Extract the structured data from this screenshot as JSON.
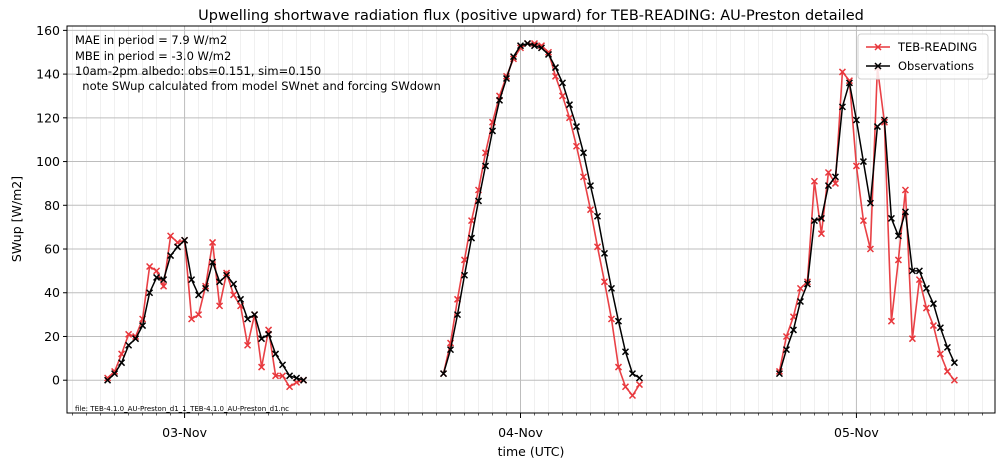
{
  "chart_data": {
    "type": "line",
    "title": "Upwelling shortwave radiation flux (positive upward) for TEB-READING: AU-Preston detailed",
    "xlabel": "time (UTC)",
    "ylabel": "SWup [W/m2]",
    "ylim": [
      -15,
      162
    ],
    "yticks": [
      0,
      20,
      40,
      60,
      80,
      100,
      120,
      140,
      160
    ],
    "xticks": [
      {
        "t": 24,
        "label": "03-Nov"
      },
      {
        "t": 48,
        "label": "04-Nov"
      },
      {
        "t": 72,
        "label": "05-Nov"
      }
    ],
    "xlim": [
      15.6,
      81.9
    ],
    "grid": true,
    "legend_position": "top-right",
    "annotations": [
      "MAE in period = 7.9 W/m2",
      "MBE in period = -3.0 W/m2",
      "10am-2pm albedo: obs=0.151, sim=0.150",
      "  note SWup calculated from model SWnet and forcing SWdown"
    ],
    "footnote": "file: TEB-4.1.0_AU-Preston_d1_1_TEB-4.1.0_AU-Preston_d1.nc",
    "series": [
      {
        "name": "TEB-READING",
        "color": "#e8373c",
        "marker": "x",
        "points": [
          [
            18.5,
            1
          ],
          [
            19,
            4
          ],
          [
            19.5,
            12
          ],
          [
            20,
            21
          ],
          [
            20.5,
            20
          ],
          [
            21,
            28
          ],
          [
            21.5,
            52
          ],
          [
            22,
            50
          ],
          [
            22.5,
            43
          ],
          [
            23,
            66
          ],
          [
            23.5,
            63
          ],
          [
            24,
            64
          ],
          [
            24.5,
            28
          ],
          [
            25,
            30
          ],
          [
            25.5,
            43
          ],
          [
            26,
            63
          ],
          [
            26.5,
            34
          ],
          [
            27,
            49
          ],
          [
            27.5,
            39
          ],
          [
            28,
            34
          ],
          [
            28.5,
            16
          ],
          [
            29,
            30
          ],
          [
            29.5,
            6
          ],
          [
            30,
            23
          ],
          [
            30.5,
            2
          ],
          [
            31,
            2
          ],
          [
            31.5,
            -3
          ],
          [
            32,
            -1
          ],
          [
            32.5,
            0
          ],
          [
            42.5,
            3
          ],
          [
            43,
            17
          ],
          [
            43.5,
            37
          ],
          [
            44,
            55
          ],
          [
            44.5,
            73
          ],
          [
            45,
            87
          ],
          [
            45.5,
            104
          ],
          [
            46,
            118
          ],
          [
            46.5,
            130
          ],
          [
            47,
            139
          ],
          [
            47.5,
            147
          ],
          [
            48,
            152
          ],
          [
            48.5,
            154
          ],
          [
            49,
            154
          ],
          [
            49.5,
            153
          ],
          [
            50,
            150
          ],
          [
            50.5,
            139
          ],
          [
            51,
            130
          ],
          [
            51.5,
            120
          ],
          [
            52,
            107
          ],
          [
            52.5,
            93
          ],
          [
            53,
            78
          ],
          [
            53.5,
            61
          ],
          [
            54,
            45
          ],
          [
            54.5,
            28
          ],
          [
            55,
            6
          ],
          [
            55.5,
            -3
          ],
          [
            56,
            -7
          ],
          [
            56.5,
            -2
          ],
          [
            66.5,
            4
          ],
          [
            67,
            20
          ],
          [
            67.5,
            29
          ],
          [
            68,
            42
          ],
          [
            68.5,
            45
          ],
          [
            69,
            91
          ],
          [
            69.5,
            67
          ],
          [
            70,
            95
          ],
          [
            70.5,
            90
          ],
          [
            71,
            141
          ],
          [
            71.5,
            137
          ],
          [
            72,
            98
          ],
          [
            72.5,
            73
          ],
          [
            73,
            60
          ],
          [
            73.5,
            143
          ],
          [
            74,
            118
          ],
          [
            74.5,
            27
          ],
          [
            75,
            55
          ],
          [
            75.5,
            87
          ],
          [
            76,
            19
          ],
          [
            76.5,
            46
          ],
          [
            77,
            33
          ],
          [
            77.5,
            25
          ],
          [
            78,
            12
          ],
          [
            78.5,
            4
          ],
          [
            79,
            0
          ]
        ]
      },
      {
        "name": "Observations",
        "color": "#000000",
        "marker": "x",
        "points": [
          [
            18.5,
            0
          ],
          [
            19,
            3
          ],
          [
            19.5,
            8
          ],
          [
            20,
            16
          ],
          [
            20.5,
            19
          ],
          [
            21,
            25
          ],
          [
            21.5,
            40
          ],
          [
            22,
            47
          ],
          [
            22.5,
            46
          ],
          [
            23,
            57
          ],
          [
            23.5,
            61
          ],
          [
            24,
            64
          ],
          [
            24.5,
            46
          ],
          [
            25,
            39
          ],
          [
            25.5,
            42
          ],
          [
            26,
            54
          ],
          [
            26.5,
            45
          ],
          [
            27,
            48
          ],
          [
            27.5,
            44
          ],
          [
            28,
            37
          ],
          [
            28.5,
            28
          ],
          [
            29,
            30
          ],
          [
            29.5,
            19
          ],
          [
            30,
            21
          ],
          [
            30.5,
            12
          ],
          [
            31,
            7
          ],
          [
            31.5,
            2
          ],
          [
            32,
            1
          ],
          [
            32.5,
            0
          ],
          [
            42.5,
            3
          ],
          [
            43,
            14
          ],
          [
            43.5,
            30
          ],
          [
            44,
            48
          ],
          [
            44.5,
            65
          ],
          [
            45,
            82
          ],
          [
            45.5,
            98
          ],
          [
            46,
            114
          ],
          [
            46.5,
            128
          ],
          [
            47,
            138
          ],
          [
            47.5,
            148
          ],
          [
            48,
            153
          ],
          [
            48.5,
            154
          ],
          [
            49,
            153
          ],
          [
            49.5,
            152
          ],
          [
            50,
            149
          ],
          [
            50.5,
            143
          ],
          [
            51,
            136
          ],
          [
            51.5,
            126
          ],
          [
            52,
            116
          ],
          [
            52.5,
            104
          ],
          [
            53,
            89
          ],
          [
            53.5,
            75
          ],
          [
            54,
            58
          ],
          [
            54.5,
            42
          ],
          [
            55,
            27
          ],
          [
            55.5,
            13
          ],
          [
            56,
            3
          ],
          [
            56.5,
            1
          ],
          [
            66.5,
            3
          ],
          [
            67,
            14
          ],
          [
            67.5,
            23
          ],
          [
            68,
            36
          ],
          [
            68.5,
            44
          ],
          [
            69,
            73
          ],
          [
            69.5,
            74
          ],
          [
            70,
            89
          ],
          [
            70.5,
            93
          ],
          [
            71,
            125
          ],
          [
            71.5,
            136
          ],
          [
            72,
            119
          ],
          [
            72.5,
            100
          ],
          [
            73,
            81
          ],
          [
            73.5,
            116
          ],
          [
            74,
            119
          ],
          [
            74.5,
            74
          ],
          [
            75,
            66
          ],
          [
            75.5,
            77
          ],
          [
            76,
            50
          ],
          [
            76.5,
            50
          ],
          [
            77,
            42
          ],
          [
            77.5,
            35
          ],
          [
            78,
            24
          ],
          [
            78.5,
            15
          ],
          [
            79,
            8
          ]
        ]
      }
    ]
  }
}
